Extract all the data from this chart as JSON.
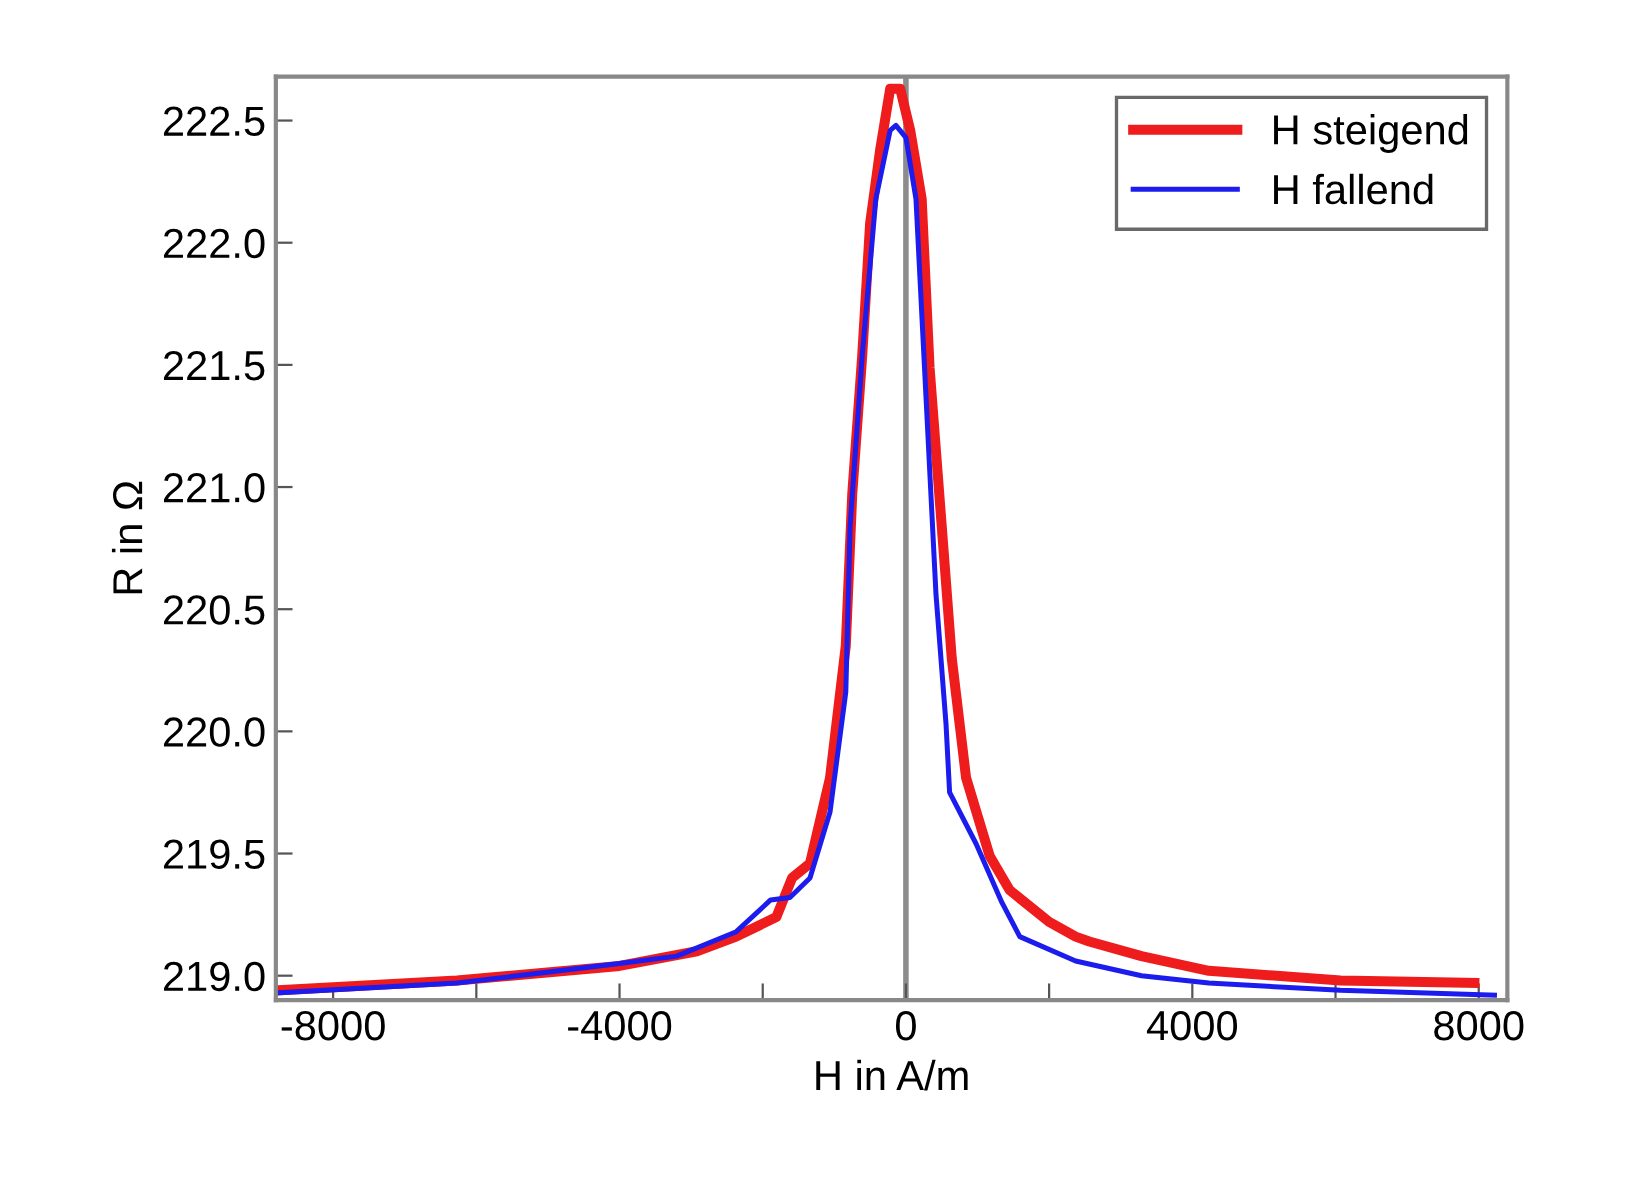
{
  "chart_data": {
    "type": "line",
    "xlabel": "H in A/m",
    "ylabel": "R in Ω",
    "xlim": [
      -8800,
      8400
    ],
    "xticks": [
      -8000,
      {
        "value": -6000,
        "label": null
      },
      -4000,
      {
        "value": -2000,
        "label": null
      },
      0,
      {
        "value": 2000,
        "label": null
      },
      4000,
      {
        "value": 6000,
        "label": null
      },
      8000
    ],
    "ylim": [
      218.9,
      222.68
    ],
    "yticks": [
      {
        "value": 219,
        "label": "219.0"
      },
      219.5,
      {
        "value": 220,
        "label": "220.0"
      },
      220.5,
      {
        "value": 221,
        "label": "221.0"
      },
      221.5,
      {
        "value": 222,
        "label": "222.0"
      },
      222.5
    ],
    "grid": false,
    "legend": "top right",
    "marker": "none",
    "line_style": "solid",
    "ref_lines": [
      {
        "axis": "x",
        "value": 0,
        "color": "#8c8c8c"
      }
    ],
    "series": [
      {
        "name": "H steigend",
        "color": "#ee1c1c",
        "x": [
          -8770,
          -6270,
          -4000,
          -2920,
          -2370,
          -1810,
          -1590,
          -1340,
          -1060,
          -840,
          -750,
          -610,
          -500,
          -360,
          -220,
          -80,
          60,
          220,
          330,
          500,
          640,
          840,
          1170,
          1450,
          2000,
          2370,
          2560,
          3290,
          4230,
          6070,
          7940
        ],
        "values": [
          218.94,
          218.98,
          219.04,
          219.1,
          219.16,
          219.24,
          219.4,
          219.46,
          219.81,
          220.35,
          220.97,
          221.54,
          222.08,
          222.38,
          222.63,
          222.63,
          222.46,
          222.18,
          221.49,
          220.84,
          220.3,
          219.81,
          219.49,
          219.35,
          219.22,
          219.16,
          219.14,
          219.08,
          219.02,
          218.98,
          218.97
        ]
      },
      {
        "name": "H fallend",
        "color": "#1c1cee",
        "x": [
          -8770,
          -6270,
          -4000,
          -3200,
          -2370,
          -1890,
          -1620,
          -1340,
          -1060,
          -840,
          -780,
          -610,
          -420,
          -220,
          -140,
          0,
          140,
          280,
          420,
          560,
          610,
          980,
          1340,
          1590,
          2370,
          3290,
          4230,
          6070,
          8220
        ],
        "values": [
          218.93,
          218.97,
          219.05,
          219.08,
          219.18,
          219.31,
          219.32,
          219.4,
          219.67,
          220.16,
          220.84,
          221.54,
          222.18,
          222.46,
          222.48,
          222.43,
          222.18,
          221.37,
          220.56,
          220.03,
          219.75,
          219.54,
          219.3,
          219.16,
          219.06,
          219.0,
          218.97,
          218.94,
          218.92
        ]
      }
    ]
  }
}
